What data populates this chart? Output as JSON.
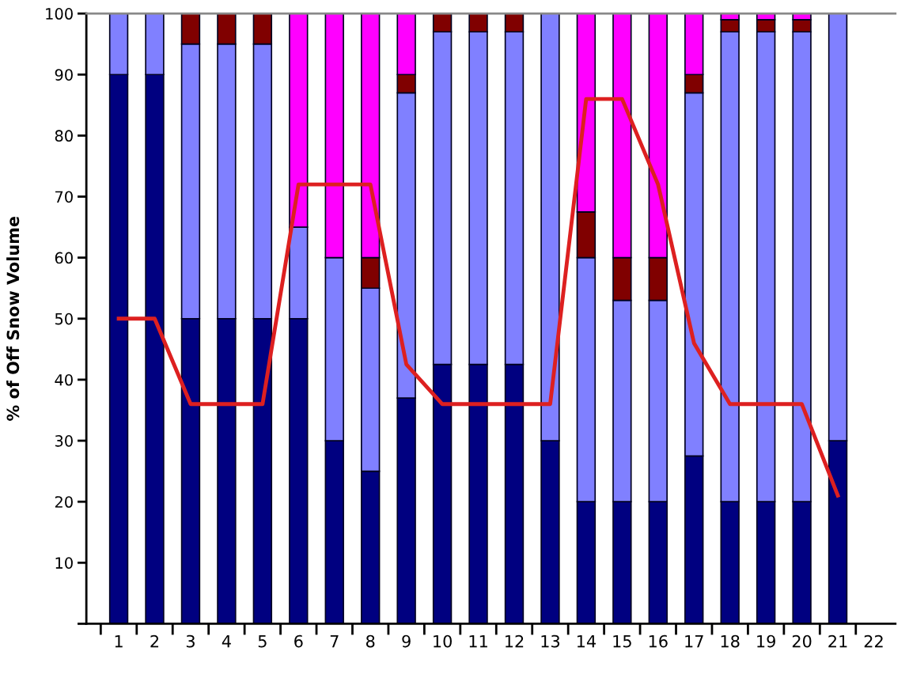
{
  "chart_data": {
    "type": "bar",
    "stacked": true,
    "ylabel": "% of Off Snow Volume",
    "categories": [
      "1",
      "2",
      "3",
      "4",
      "5",
      "6",
      "7",
      "8",
      "9",
      "10",
      "11",
      "12",
      "13",
      "14",
      "15",
      "16",
      "17",
      "18",
      "19",
      "20",
      "21",
      "22"
    ],
    "series": [
      {
        "color": "#000080",
        "values": [
          90,
          90,
          50,
          50,
          50,
          50,
          30,
          25,
          37,
          42.5,
          42.5,
          42.5,
          30,
          20,
          20,
          20,
          27.5,
          20,
          20,
          20,
          30,
          null
        ]
      },
      {
        "color": "#8080ff",
        "values": [
          10,
          10,
          45,
          45,
          45,
          15,
          30,
          30,
          50,
          54.5,
          54.5,
          54.5,
          70,
          40,
          33,
          33,
          59.5,
          77,
          77,
          77,
          70,
          null
        ]
      },
      {
        "color": "#800000",
        "values": [
          0,
          0,
          5,
          5,
          5,
          0,
          0,
          5,
          3,
          3,
          3,
          3,
          0,
          7.5,
          7,
          7,
          3,
          2,
          2,
          2,
          0,
          null
        ]
      },
      {
        "color": "#ff00ff",
        "values": [
          0,
          0,
          0,
          0,
          0,
          35,
          40,
          40,
          10,
          0,
          0,
          0,
          0,
          32.5,
          40,
          40,
          10,
          1,
          1,
          1,
          0,
          null
        ]
      },
      {
        "type": "line",
        "color": "#dd2020",
        "values": [
          50,
          50,
          36,
          36,
          36,
          72,
          72,
          72,
          42.5,
          36,
          36,
          36,
          36,
          86,
          86,
          72,
          46,
          36,
          36,
          36,
          21,
          null
        ]
      }
    ],
    "ylim": [
      0,
      100
    ],
    "yticks": [
      {
        "value": 0,
        "label": null
      },
      10,
      20,
      30,
      40,
      50,
      60,
      70,
      80,
      90,
      100
    ],
    "grid": false,
    "legend": false,
    "marker": "none",
    "line_style": "solid"
  }
}
